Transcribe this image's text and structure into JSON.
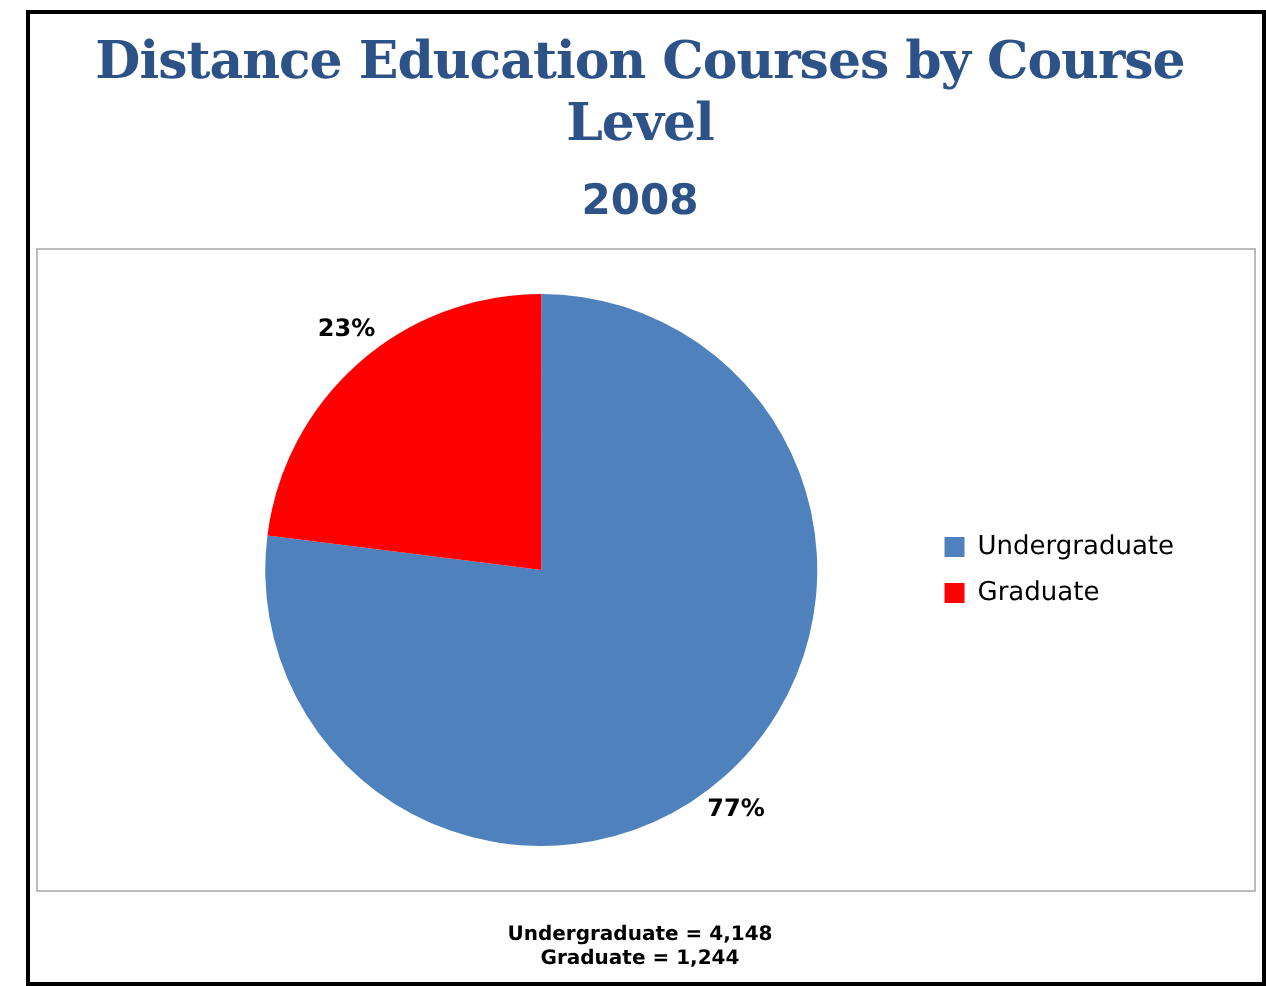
{
  "chart_data": {
    "type": "pie",
    "title": "Distance Education Courses by Course Level",
    "subtitle": "2008",
    "categories": [
      "Undergraduate",
      "Graduate"
    ],
    "values": [
      77,
      23
    ],
    "colors": [
      "#4f81bd",
      "#ff0000"
    ],
    "value_labels": [
      "77%",
      "23%"
    ],
    "legend": "right",
    "annotations": [
      "Undergraduate = 4,148",
      "Graduate = 1,244"
    ]
  }
}
